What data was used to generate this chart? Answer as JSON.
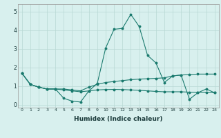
{
  "xlabel": "Humidex (Indice chaleur)",
  "ylabel": "",
  "background_color": "#d8f0ee",
  "grid_color": "#b8d8d4",
  "line_color": "#1a7a6e",
  "xlim": [
    -0.5,
    23.5
  ],
  "ylim": [
    -0.15,
    5.4
  ],
  "xticks": [
    0,
    1,
    2,
    3,
    4,
    5,
    6,
    7,
    8,
    9,
    10,
    11,
    12,
    13,
    14,
    15,
    16,
    17,
    18,
    19,
    20,
    21,
    22,
    23
  ],
  "yticks": [
    0,
    1,
    2,
    3,
    4,
    5
  ],
  "series": [
    [
      1.7,
      1.1,
      0.95,
      0.85,
      0.85,
      0.35,
      0.2,
      0.15,
      0.75,
      1.15,
      3.05,
      4.05,
      4.1,
      4.85,
      4.2,
      2.65,
      2.25,
      1.2,
      1.55,
      1.6,
      0.3,
      0.65,
      0.85,
      0.65
    ],
    [
      1.7,
      1.1,
      0.95,
      0.85,
      0.85,
      0.85,
      0.8,
      0.75,
      0.95,
      1.1,
      1.2,
      1.25,
      1.3,
      1.35,
      1.38,
      1.4,
      1.42,
      1.45,
      1.55,
      1.6,
      1.62,
      1.65,
      1.65,
      1.65
    ],
    [
      1.7,
      1.1,
      0.95,
      0.85,
      0.85,
      0.8,
      0.75,
      0.7,
      0.75,
      0.8,
      0.82,
      0.83,
      0.82,
      0.8,
      0.78,
      0.75,
      0.72,
      0.7,
      0.7,
      0.7,
      0.68,
      0.67,
      0.67,
      0.65
    ]
  ]
}
